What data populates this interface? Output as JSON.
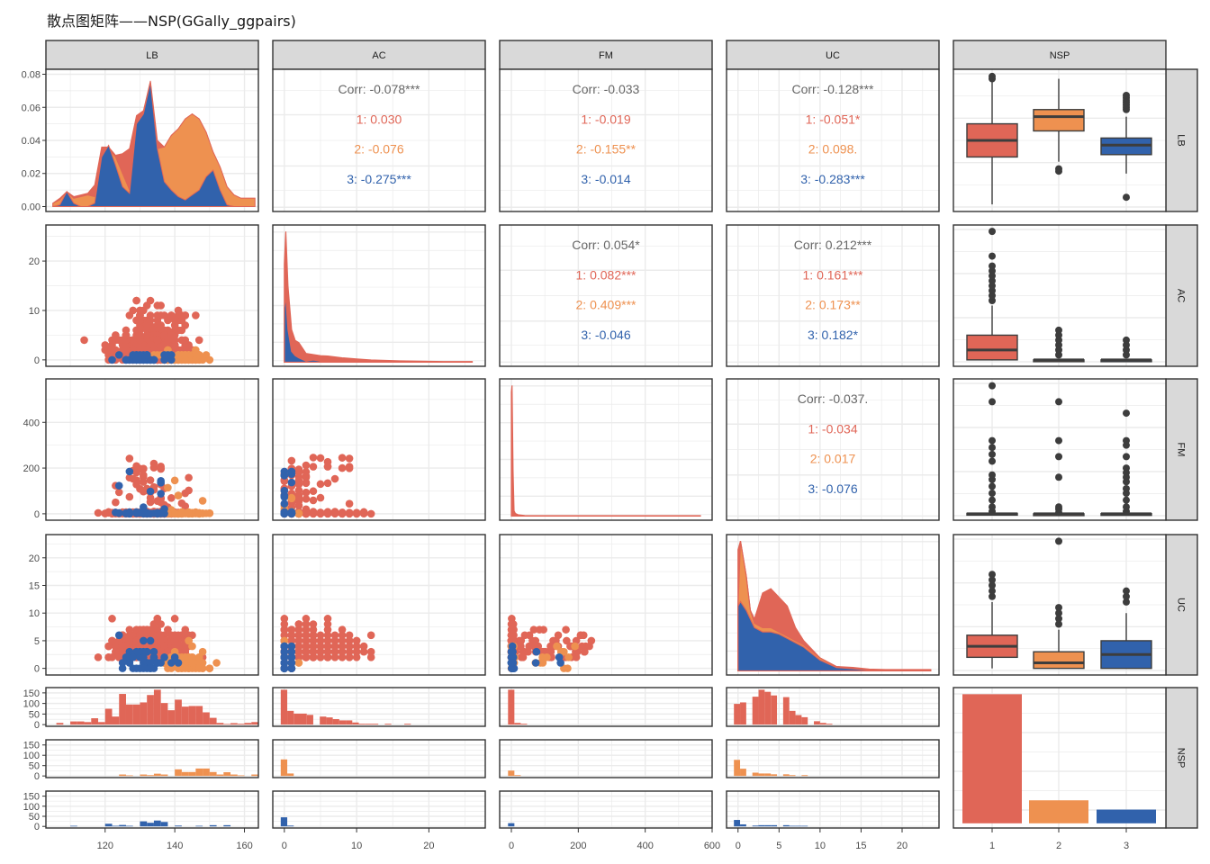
{
  "title": "散点图矩阵——NSP(GGally_ggpairs)",
  "colors": {
    "group1": "#E06657",
    "group2": "#EE9150",
    "group3": "#3162AC",
    "overall": "#666666",
    "box_line": "#3d3d3d",
    "strip_bg": "#d9d9d9",
    "grid": "#ebebeb",
    "border": "#333333"
  },
  "chart_data": {
    "type": "scatter-matrix",
    "title": "散点图矩阵——NSP(GGally_ggpairs)",
    "variables": [
      "LB",
      "AC",
      "FM",
      "UC",
      "NSP"
    ],
    "groups": [
      "1",
      "2",
      "3"
    ],
    "column_strips": [
      "LB",
      "AC",
      "FM",
      "UC",
      "NSP"
    ],
    "row_strips": [
      "LB",
      "AC",
      "FM",
      "UC",
      "NSP"
    ],
    "axes": {
      "LB": {
        "range": [
          103,
          164
        ],
        "ticks": [
          120,
          140,
          160
        ]
      },
      "AC": {
        "range": [
          -1.6,
          27.8
        ],
        "ticks": [
          0,
          10,
          20
        ]
      },
      "FM": {
        "range": [
          -35,
          600
        ],
        "ticks": [
          0,
          200,
          400,
          600
        ]
      },
      "UC": {
        "range": [
          -1.4,
          24.5
        ],
        "ticks": [
          0,
          5,
          10,
          15,
          20
        ]
      },
      "NSP": {
        "categories": [
          "1",
          "2",
          "3"
        ]
      }
    },
    "row_y_axes": {
      "LB_density": {
        "range": [
          -0.003,
          0.083
        ],
        "ticks": [
          0.0,
          0.02,
          0.04,
          0.06,
          0.08
        ],
        "tick_labels": [
          "0.00",
          "0.02",
          "0.04",
          "0.06",
          "0.08"
        ]
      },
      "AC": {
        "range": [
          -1.3,
          27.3
        ],
        "ticks": [
          0,
          10,
          20
        ]
      },
      "FM": {
        "range": [
          -28,
          590
        ],
        "ticks": [
          0,
          200,
          400
        ]
      },
      "UC": {
        "range": [
          -1.2,
          24.2
        ],
        "ticks": [
          0,
          5,
          10,
          15,
          20
        ]
      },
      "NSP_hist": {
        "range": [
          -8,
          175
        ],
        "ticks": [
          0,
          50,
          100,
          150
        ]
      }
    },
    "correlations": [
      {
        "row": "LB",
        "col": "AC",
        "overall": "Corr: -0.078***",
        "g1": "1: 0.030",
        "g2": "2: -0.076",
        "g3": "3: -0.275***"
      },
      {
        "row": "LB",
        "col": "FM",
        "overall": "Corr: -0.033",
        "g1": "1: -0.019",
        "g2": "2: -0.155**",
        "g3": "3: -0.014"
      },
      {
        "row": "LB",
        "col": "UC",
        "overall": "Corr: -0.128***",
        "g1": "1: -0.051*",
        "g2": "2: 0.098.",
        "g3": "3: -0.283***"
      },
      {
        "row": "AC",
        "col": "FM",
        "overall": "Corr: 0.054*",
        "g1": "1: 0.082***",
        "g2": "2: 0.409***",
        "g3": "3: -0.046"
      },
      {
        "row": "AC",
        "col": "UC",
        "overall": "Corr: 0.212***",
        "g1": "1: 0.161***",
        "g2": "2: 0.173**",
        "g3": "3: 0.182*"
      },
      {
        "row": "FM",
        "col": "UC",
        "overall": "Corr: -0.037.",
        "g1": "1: -0.034",
        "g2": "2: 0.017",
        "g3": "3: -0.076"
      }
    ],
    "boxplots": {
      "LB": [
        {
          "group": "1",
          "q1": 126,
          "median": 133,
          "q3": 140,
          "whisker_low": 106,
          "whisker_high": 160,
          "outliers": [
            159,
            160
          ]
        },
        {
          "group": "2",
          "q1": 137,
          "median": 143,
          "q3": 146,
          "whisker_low": 124,
          "whisker_high": 159,
          "outliers": [
            120,
            121
          ]
        },
        {
          "group": "3",
          "q1": 127,
          "median": 131,
          "q3": 134,
          "whisker_low": 119,
          "whisker_high": 143,
          "outliers": [
            146,
            147,
            148,
            149,
            150,
            151,
            152,
            109
          ]
        }
      ],
      "AC": [
        {
          "group": "1",
          "q1": 0,
          "median": 2,
          "q3": 5,
          "whisker_low": 0,
          "whisker_high": 11,
          "outliers": [
            12,
            13,
            14,
            15,
            16,
            17,
            18,
            19,
            21,
            26
          ]
        },
        {
          "group": "2",
          "q1": 0,
          "median": 0,
          "q3": 0,
          "whisker_low": 0,
          "whisker_high": 0,
          "outliers": [
            1,
            2,
            3,
            4,
            5,
            6
          ]
        },
        {
          "group": "3",
          "q1": 0,
          "median": 0,
          "q3": 0,
          "whisker_low": 0,
          "whisker_high": 0,
          "outliers": [
            1,
            2,
            3,
            4
          ]
        }
      ],
      "FM": [
        {
          "group": "1",
          "q1": 0,
          "median": 0,
          "q3": 2,
          "whisker_low": 0,
          "whisker_high": 5,
          "outliers": [
            10,
            30,
            60,
            90,
            120,
            150,
            170,
            230,
            260,
            290,
            320,
            490,
            560
          ]
        },
        {
          "group": "2",
          "q1": 0,
          "median": 0,
          "q3": 0,
          "whisker_low": 0,
          "whisker_high": 0,
          "outliers": [
            5,
            20,
            30,
            160,
            250,
            320,
            490
          ]
        },
        {
          "group": "3",
          "q1": 0,
          "median": 0,
          "q3": 1,
          "whisker_low": 0,
          "whisker_high": 2,
          "outliers": [
            10,
            30,
            60,
            90,
            110,
            140,
            160,
            180,
            200,
            250,
            300,
            320,
            440
          ]
        }
      ],
      "UC": [
        {
          "group": "1",
          "q1": 2,
          "median": 4,
          "q3": 6,
          "whisker_low": 0,
          "whisker_high": 12,
          "outliers": [
            13,
            14,
            15,
            16,
            17
          ]
        },
        {
          "group": "2",
          "q1": 0,
          "median": 1,
          "q3": 3,
          "whisker_low": 0,
          "whisker_high": 7,
          "outliers": [
            8,
            9,
            10,
            11,
            23
          ]
        },
        {
          "group": "3",
          "q1": 0,
          "median": 2.5,
          "q3": 5,
          "whisker_low": 0,
          "whisker_high": 10,
          "outliers": [
            12,
            13,
            14
          ]
        }
      ]
    },
    "nsp_counts": {
      "1": 1655,
      "2": 295,
      "3": 176
    },
    "nsp_bar_axis": {
      "range": [
        -60,
        1740
      ]
    },
    "lb_density": {
      "x": [
        105,
        107,
        109,
        111,
        113,
        115,
        117,
        119,
        121,
        123,
        125,
        127,
        129,
        131,
        133,
        135,
        137,
        139,
        141,
        143,
        145,
        147,
        149,
        151,
        153,
        155,
        157,
        159,
        161,
        163
      ],
      "stacked_total": [
        0.002,
        0.005,
        0.009,
        0.006,
        0.007,
        0.008,
        0.013,
        0.036,
        0.036,
        0.031,
        0.032,
        0.035,
        0.055,
        0.058,
        0.076,
        0.04,
        0.036,
        0.043,
        0.047,
        0.053,
        0.056,
        0.053,
        0.045,
        0.033,
        0.024,
        0.012,
        0.007,
        0.005,
        0.005,
        0.005
      ],
      "stacked_g2_top": [
        0.002,
        0.004,
        0.009,
        0.005,
        0.006,
        0.007,
        0.006,
        0.03,
        0.035,
        0.03,
        0.02,
        0.01,
        0.05,
        0.056,
        0.075,
        0.035,
        0.036,
        0.043,
        0.047,
        0.053,
        0.056,
        0.053,
        0.045,
        0.033,
        0.024,
        0.012,
        0.007,
        0.005,
        0.005,
        0.005
      ],
      "g3": [
        0.0,
        0.001,
        0.009,
        0.002,
        0.0,
        0.0,
        0.002,
        0.03,
        0.037,
        0.025,
        0.012,
        0.008,
        0.05,
        0.056,
        0.075,
        0.035,
        0.015,
        0.01,
        0.006,
        0.004,
        0.007,
        0.01,
        0.018,
        0.022,
        0.01,
        0.001,
        0.0,
        0.0,
        0.0,
        0.0
      ]
    },
    "ac_density": {
      "x": [
        0,
        0.2,
        0.5,
        1,
        1.5,
        2,
        3,
        4,
        5,
        6,
        8,
        10,
        12,
        14,
        16,
        18,
        20,
        22,
        24,
        26
      ],
      "total": [
        0.45,
        0.6,
        0.35,
        0.15,
        0.1,
        0.09,
        0.04,
        0.035,
        0.03,
        0.028,
        0.02,
        0.015,
        0.01,
        0.008,
        0.006,
        0.005,
        0.004,
        0.003,
        0.003,
        0.003
      ],
      "g3": [
        0.25,
        0.3,
        0.15,
        0.05,
        0.03,
        0.02,
        0.005,
        0.01,
        0.005,
        0.003,
        0.001,
        0,
        0,
        0,
        0,
        0,
        0,
        0,
        0,
        0
      ]
    },
    "fm_density": {
      "x": [
        0,
        2,
        5,
        8,
        12,
        20,
        40,
        80,
        150,
        300,
        450,
        565
      ],
      "total": [
        0.95,
        1.0,
        0.35,
        0.04,
        0.02,
        0.01,
        0.004,
        0.003,
        0.003,
        0.003,
        0.003,
        0.003
      ]
    },
    "uc_density": {
      "x": [
        0,
        0.3,
        1,
        1.5,
        2,
        3,
        4,
        5,
        6,
        7,
        8,
        10,
        12,
        14,
        16,
        18,
        20,
        22,
        23.5
      ],
      "total": [
        0.28,
        0.3,
        0.22,
        0.14,
        0.12,
        0.18,
        0.19,
        0.17,
        0.15,
        0.1,
        0.07,
        0.03,
        0.01,
        0.008,
        0.004,
        0.003,
        0.003,
        0.003,
        0.003
      ],
      "g2_top": [
        0.15,
        0.3,
        0.22,
        0.14,
        0.11,
        0.1,
        0.1,
        0.09,
        0.08,
        0.07,
        0.06,
        0.03,
        0.01,
        0.006,
        0.003,
        0.002,
        0.002,
        0.002,
        0.002
      ],
      "g3": [
        0.15,
        0.16,
        0.14,
        0.12,
        0.1,
        0.09,
        0.09,
        0.085,
        0.075,
        0.065,
        0.055,
        0.025,
        0.008,
        0.005,
        0.002,
        0.0,
        0.0,
        0.0,
        0.0
      ]
    },
    "histograms": {
      "LB": {
        "bin_start": 104,
        "bin_width": 2,
        "g1": [
          0,
          8,
          0,
          15,
          15,
          12,
          30,
          12,
          75,
          38,
          145,
          95,
          95,
          105,
          140,
          165,
          102,
          68,
          118,
          85,
          88,
          88,
          58,
          32,
          8,
          3,
          7,
          4,
          8,
          12,
          0
        ],
        "g2": [
          0,
          0,
          0,
          0,
          0,
          0,
          0,
          0,
          0,
          0,
          7,
          3,
          0,
          7,
          4,
          11,
          7,
          0,
          32,
          19,
          19,
          36,
          36,
          19,
          7,
          18,
          7,
          3,
          0,
          7,
          0
        ],
        "g3": [
          0,
          0,
          0,
          3,
          0,
          0,
          0,
          0,
          13,
          3,
          7,
          3,
          0,
          25,
          18,
          29,
          22,
          0,
          4,
          0,
          0,
          3,
          0,
          6,
          0,
          6,
          0,
          0,
          0,
          0,
          0
        ]
      },
      "AC": {
        "bin_start": -0.5,
        "bin_width": 0.9,
        "g1": [
          165,
          65,
          52,
          52,
          46,
          0,
          38,
          34,
          26,
          20,
          20,
          10,
          4,
          4,
          4,
          0,
          4,
          0,
          0,
          4,
          0
        ],
        "g2": [
          80,
          12,
          0,
          0,
          0,
          0,
          0,
          0,
          0,
          0,
          0,
          0,
          0,
          0,
          0,
          0,
          0,
          0,
          0,
          0,
          0
        ],
        "g3": [
          45,
          4,
          0,
          0,
          0,
          0,
          0,
          0,
          0,
          0,
          0,
          0,
          0,
          0,
          0,
          0,
          0,
          0,
          0,
          0,
          0
        ]
      },
      "FM": {
        "bin_start": -10,
        "bin_width": 19,
        "g1": [
          165,
          8,
          4,
          0
        ],
        "g2": [
          26,
          4,
          0,
          0
        ],
        "g3": [
          16,
          0,
          0,
          0
        ]
      },
      "UC": {
        "bin_start": -0.5,
        "bin_width": 0.75,
        "g1": [
          98,
          105,
          0,
          132,
          165,
          155,
          138,
          0,
          130,
          65,
          45,
          35,
          0,
          16,
          8,
          4,
          0
        ],
        "g2": [
          78,
          35,
          0,
          16,
          12,
          12,
          8,
          0,
          8,
          4,
          0,
          4,
          0,
          0,
          0,
          0,
          0
        ],
        "g3": [
          32,
          10,
          0,
          4,
          6,
          6,
          6,
          0,
          6,
          3,
          3,
          3,
          0,
          0,
          0,
          0,
          0
        ]
      }
    }
  }
}
